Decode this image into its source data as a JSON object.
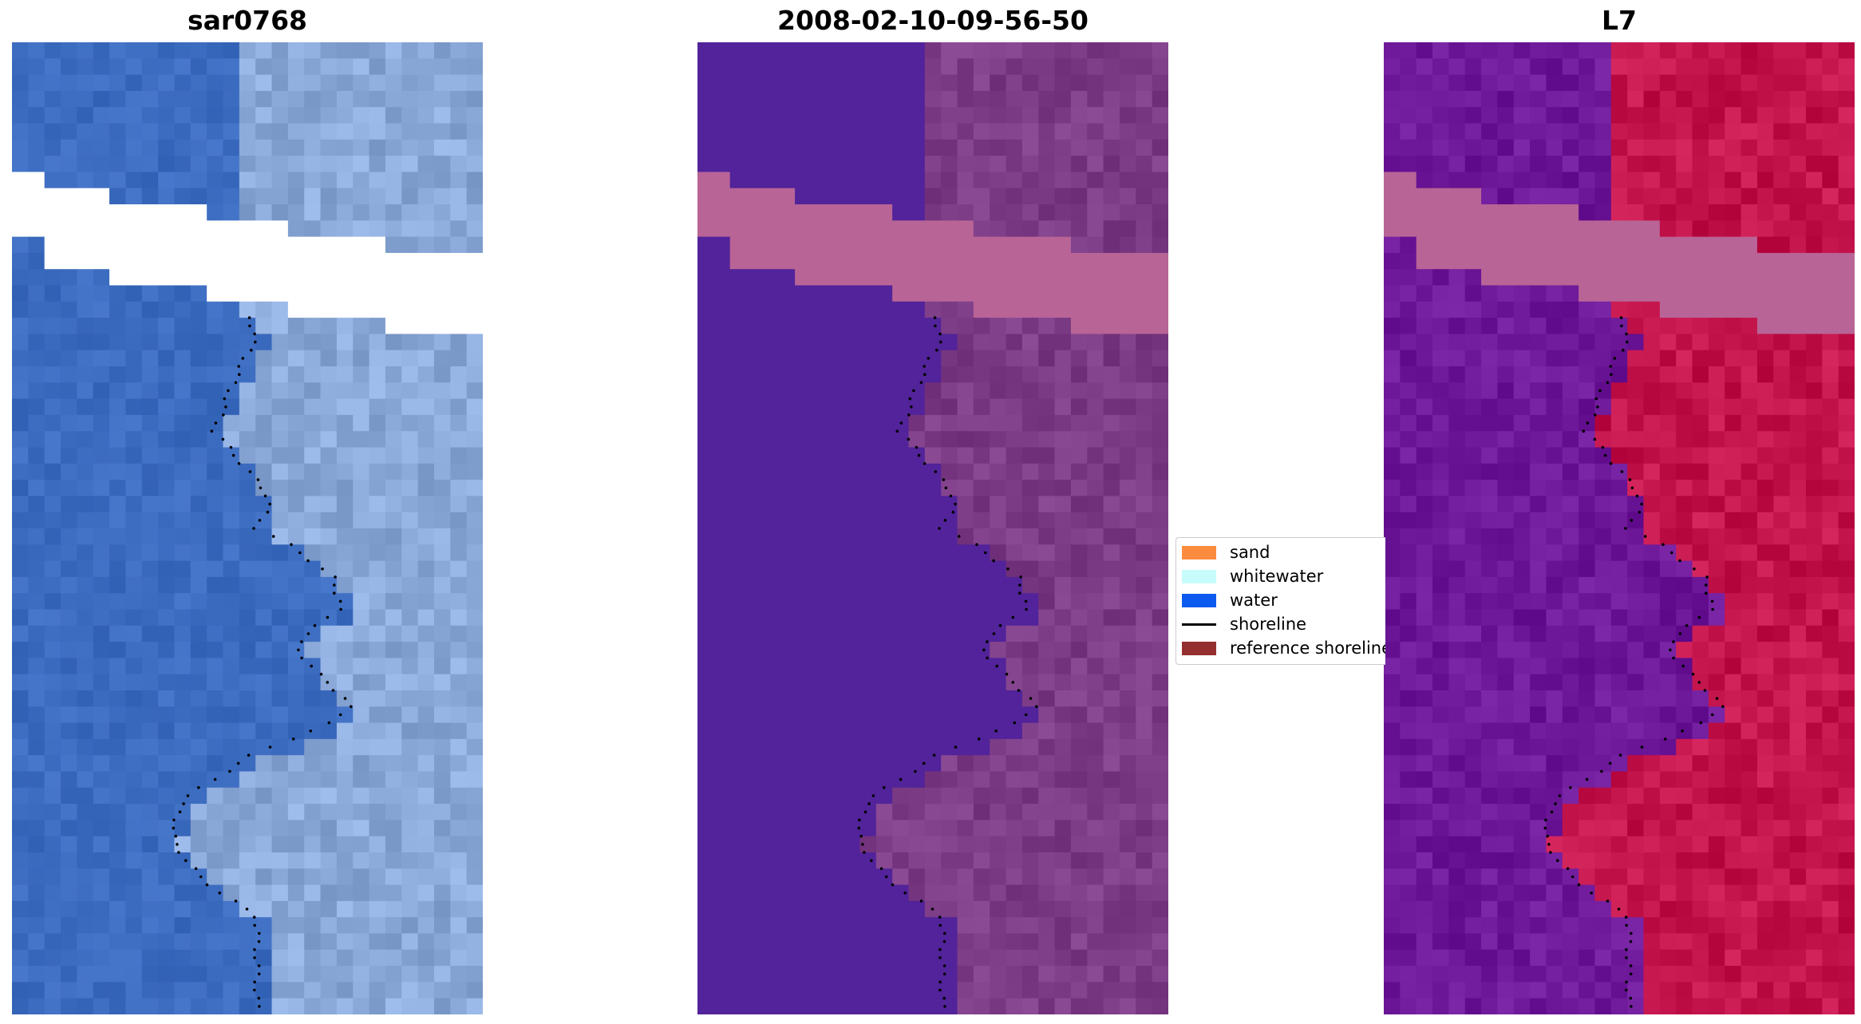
{
  "panels": [
    {
      "title": "sar0768",
      "kind": "rgb"
    },
    {
      "title": "2008-02-10-09-56-50",
      "kind": "classified"
    },
    {
      "title": "L7",
      "kind": "index"
    }
  ],
  "legend": {
    "items": [
      {
        "label": "sand",
        "type": "patch",
        "color": "#fb8c3f"
      },
      {
        "label": "whitewater",
        "type": "patch",
        "color": "#c8fcfc"
      },
      {
        "label": "water",
        "type": "patch",
        "color": "#0c5aee"
      },
      {
        "label": "shoreline",
        "type": "line",
        "color": "#000000"
      },
      {
        "label": "reference shoreline",
        "type": "patch",
        "color": "#952e2f"
      }
    ]
  },
  "colors": {
    "rgb_water": "#3c6cc0",
    "rgb_land": "#8aa8d8",
    "class_water": "#52239a",
    "class_land": "#7c3c86",
    "class_band": "#b86496",
    "index_water": "#6c1898",
    "index_land": "#c4144c",
    "index_band": "#b86496"
  }
}
